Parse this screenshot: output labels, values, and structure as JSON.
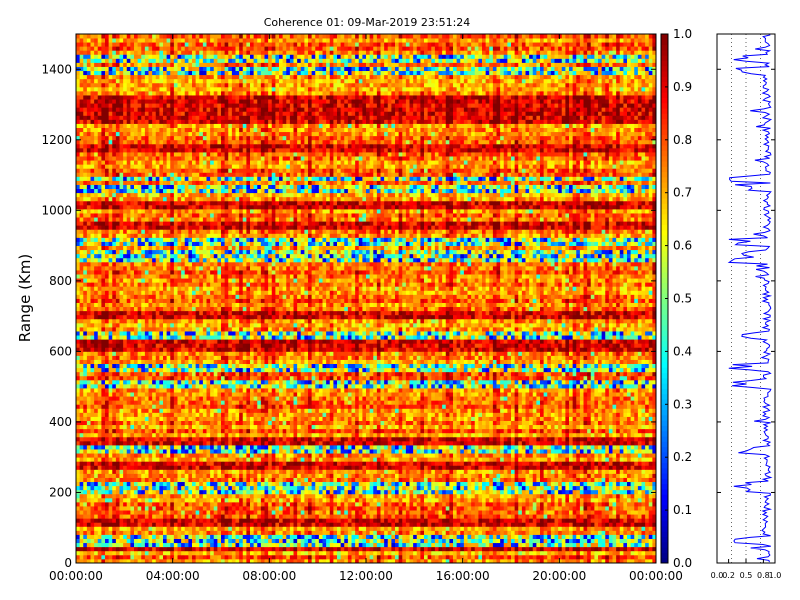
{
  "chart_data": {
    "type": "heatmap",
    "title": "Coherence 01: 09-Mar-2019 23:51:24",
    "ylabel": "Range (Km)",
    "xlabel": "",
    "x_ticks": [
      "00:00:00",
      "04:00:00",
      "08:00:00",
      "12:00:00",
      "16:00:00",
      "20:00:00",
      "00:00:00"
    ],
    "y_ticks": [
      0,
      200,
      400,
      600,
      800,
      1000,
      1200,
      1400
    ],
    "ylim": [
      0,
      1500
    ],
    "colorbar": {
      "colormap": "jet",
      "range": [
        0.0,
        1.0
      ],
      "ticks": [
        "0.0",
        "0.1",
        "0.2",
        "0.3",
        "0.4",
        "0.5",
        "0.6",
        "0.7",
        "0.8",
        "0.9",
        "1.0"
      ]
    },
    "side_panel": {
      "type": "line",
      "x_ticks": [
        "0.0",
        "0.2",
        "0.5",
        "0.8",
        "1.0"
      ],
      "xlim": [
        0.0,
        1.0
      ],
      "color": "#0000ff"
    },
    "low_coherence_ranges_km": [
      62,
      68,
      210,
      222,
      320,
      505,
      510,
      555,
      645,
      860,
      875,
      910,
      1065,
      1090,
      1395,
      1430
    ],
    "high_coherence_ranges_km": [
      50,
      120,
      280,
      350,
      610,
      630,
      700,
      960,
      1015,
      1180,
      1255,
      1275,
      1310
    ]
  }
}
